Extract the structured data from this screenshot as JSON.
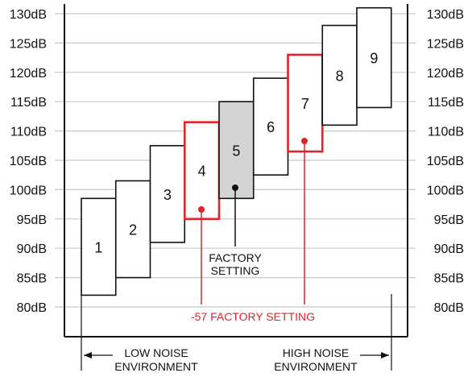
{
  "y_axis": {
    "min_db": 80,
    "max_db": 130,
    "step_db": 5,
    "left_tick_labels": [
      "130dB",
      "125dB",
      "120dB",
      "115dB",
      "110dB",
      "105dB",
      "100dB",
      "95dB",
      "90dB",
      "85dB",
      "80dB"
    ],
    "right_tick_labels": [
      "130dB",
      "125dB",
      "120dB",
      "115dB",
      "110dB",
      "105dB",
      "100dB",
      "95dB",
      "90dB",
      "85dB",
      "80dB"
    ],
    "gridlines": true
  },
  "levels": [
    {
      "label": "1",
      "low_db": 82,
      "high_db": 98.5,
      "style": "normal"
    },
    {
      "label": "2",
      "low_db": 85,
      "high_db": 101.5,
      "style": "normal"
    },
    {
      "label": "3",
      "low_db": 91,
      "high_db": 107.5,
      "style": "normal"
    },
    {
      "label": "4",
      "low_db": 95,
      "high_db": 111.5,
      "style": "red"
    },
    {
      "label": "5",
      "low_db": 98.5,
      "high_db": 115,
      "style": "shaded"
    },
    {
      "label": "6",
      "low_db": 102.5,
      "high_db": 119,
      "style": "normal"
    },
    {
      "label": "7",
      "low_db": 106.5,
      "high_db": 123,
      "style": "red"
    },
    {
      "label": "8",
      "low_db": 111,
      "high_db": 128,
      "style": "normal"
    },
    {
      "label": "9",
      "low_db": 114,
      "high_db": 131,
      "style": "normal"
    }
  ],
  "annotations": {
    "factory_setting_line1": "FACTORY",
    "factory_setting_line2": "SETTING",
    "alt_factory_setting": "-57 FACTORY SETTING"
  },
  "environment": {
    "low_line1": "LOW NOISE",
    "low_line2": "ENVIRONMENT",
    "high_line1": "HIGH NOISE",
    "high_line2": "ENVIRONMENT"
  },
  "colors": {
    "red": "#e0242b",
    "shaded": "#d4d4d4",
    "grid": "#c8c8c8",
    "ink": "#111111"
  }
}
